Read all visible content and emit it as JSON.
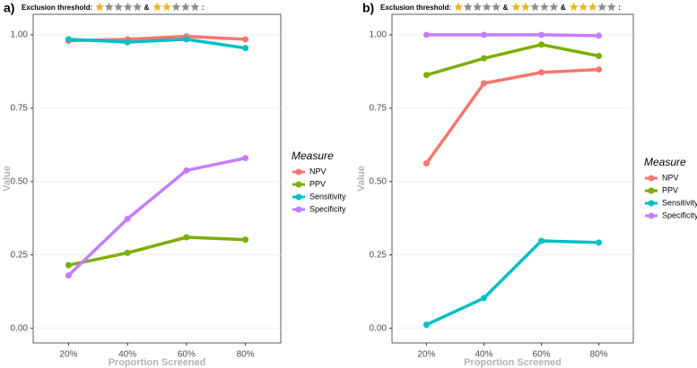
{
  "chart_data": [
    {
      "type": "line",
      "panel_label": "a)",
      "threshold_label": "Exclusion threshold:",
      "separators": [
        "&",
        ":"
      ],
      "thresholds": [
        1,
        2
      ],
      "stars_total": 5,
      "categories": [
        "20%",
        "40%",
        "60%",
        "80%"
      ],
      "x_label": "Proportion Screened",
      "y_label": "Value",
      "legend_title": "Measure",
      "ylim": [
        -0.05,
        1.07
      ],
      "yticks": [
        {
          "value": 0,
          "label": "0.00"
        },
        0.25,
        {
          "value": 0.5,
          "label": "0.50"
        },
        0.75,
        {
          "value": 1,
          "label": "1.00"
        }
      ],
      "grid": true,
      "series": [
        {
          "name": "NPV",
          "color": "#f8766d",
          "values": [
            0.98,
            0.985,
            0.995,
            0.985
          ]
        },
        {
          "name": "PPV",
          "color": "#7cae00",
          "values": [
            0.215,
            0.257,
            0.31,
            0.302
          ]
        },
        {
          "name": "Sensitivity",
          "color": "#00bfc4",
          "values": [
            0.985,
            0.975,
            0.985,
            0.955
          ]
        },
        {
          "name": "Specificity",
          "color": "#c77cff",
          "values": [
            0.18,
            0.373,
            0.538,
            0.58
          ]
        }
      ]
    },
    {
      "type": "line",
      "panel_label": "b)",
      "threshold_label": "Exclusion threshold:",
      "separators": [
        "&",
        "&",
        ":"
      ],
      "thresholds": [
        1,
        2,
        3
      ],
      "stars_total": 5,
      "categories": [
        "20%",
        "40%",
        "60%",
        "80%"
      ],
      "x_label": "Proportion Screened",
      "y_label": "Value",
      "legend_title": "Measure",
      "ylim": [
        -0.05,
        1.07
      ],
      "yticks": [
        {
          "value": 0,
          "label": "0.00"
        },
        0.25,
        {
          "value": 0.5,
          "label": "0.50"
        },
        0.75,
        {
          "value": 1,
          "label": "1.00"
        }
      ],
      "grid": true,
      "series": [
        {
          "name": "NPV",
          "color": "#f8766d",
          "values": [
            0.562,
            0.835,
            0.872,
            0.882
          ]
        },
        {
          "name": "PPV",
          "color": "#7cae00",
          "values": [
            0.863,
            0.92,
            0.967,
            0.928
          ]
        },
        {
          "name": "Sensitivity",
          "color": "#00bfc4",
          "values": [
            0.012,
            0.103,
            0.298,
            0.292
          ]
        },
        {
          "name": "Specificity",
          "color": "#c77cff",
          "values": [
            1.0,
            1.0,
            1.0,
            0.997
          ]
        }
      ]
    }
  ]
}
